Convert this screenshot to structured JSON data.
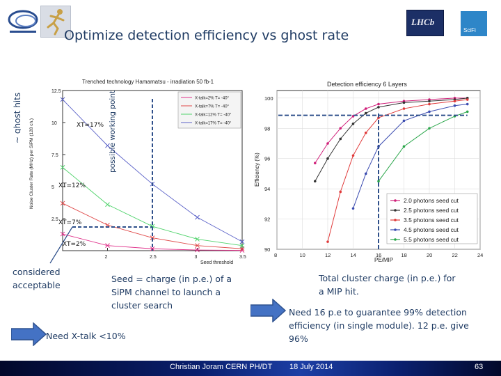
{
  "slide": {
    "title": "Optimize detection efficiency  vs  ghost rate",
    "ghost_label": "~ ghost hits",
    "page_number": "63"
  },
  "footer": {
    "author": "Christian Joram   CERN  PH/DT",
    "date": "18 July 2014"
  },
  "logos": {
    "lhcb_text": "LHCb",
    "scifi_text": "SciFi"
  },
  "left_chart": {
    "possible_working_point": "possible working point",
    "xt_labels": [
      "XT=17%",
      "XT=12%",
      "XT=7%",
      "XT=2%"
    ],
    "considered_acceptable": "considered acceptable",
    "chart_data": {
      "type": "line",
      "title": "Trenched technology Hamamatsu - irradiation 50 fb-1",
      "xlabel": "Seed threshold",
      "ylabel": "Noise Cluster Rate (MHz) per SiPM (128 ch.)",
      "x": [
        1.5,
        2,
        2.5,
        3,
        3.5
      ],
      "xlim": [
        1.5,
        3.5
      ],
      "ylim": [
        0,
        12.5
      ],
      "x_ticks": [
        "2",
        "2.5",
        "3",
        "3.5"
      ],
      "y_ticks": [
        "2.5",
        "5",
        "7.5",
        "10",
        "12.5"
      ],
      "legend_position": "top-right",
      "series": [
        {
          "name": "X-talk=2%  T= -40°",
          "color": "#e0308a",
          "values": [
            1.3,
            0.4,
            0.15,
            0.05,
            0.02
          ]
        },
        {
          "name": "X-talk=7%  T= -40°",
          "color": "#e04a4a",
          "values": [
            3.7,
            2.0,
            1.0,
            0.4,
            0.15
          ]
        },
        {
          "name": "X-talk=12% T= -40°",
          "color": "#4fd36b",
          "values": [
            6.5,
            3.6,
            1.9,
            0.9,
            0.4
          ]
        },
        {
          "name": "X-talk=17% T= -40°",
          "color": "#5b62c8",
          "values": [
            11.8,
            8.2,
            5.2,
            2.6,
            0.7
          ]
        }
      ]
    }
  },
  "right_chart": {
    "chart_data": {
      "type": "line",
      "title": "Detection efficiency 6 Layers",
      "xlabel": "PE/MIP",
      "ylabel": "Efficiency (%)",
      "xlim": [
        8,
        24
      ],
      "ylim": [
        90,
        100.5
      ],
      "x_ticks": [
        "8",
        "10",
        "12",
        "14",
        "16",
        "18",
        "20",
        "22",
        "24"
      ],
      "y_ticks": [
        "90",
        "92",
        "94",
        "96",
        "98",
        "100"
      ],
      "legend_position": "bottom-right",
      "series": [
        {
          "name": "2.0 photons seed cut",
          "color": "#d0207a",
          "x": [
            11,
            12,
            13,
            14,
            15,
            16,
            18,
            20,
            22,
            23
          ],
          "values": [
            95.7,
            97.0,
            98.0,
            98.8,
            99.3,
            99.6,
            99.8,
            99.9,
            100,
            100
          ]
        },
        {
          "name": "2.5 photons seed cut",
          "color": "#333333",
          "x": [
            11,
            12,
            13,
            14,
            15,
            16,
            18,
            20,
            22,
            23
          ],
          "values": [
            94.5,
            96.0,
            97.3,
            98.3,
            99.0,
            99.4,
            99.7,
            99.8,
            99.9,
            100
          ]
        },
        {
          "name": "3.5 photons seed cut",
          "color": "#e03a3a",
          "x": [
            12,
            13,
            14,
            15,
            16,
            18,
            20,
            22,
            23
          ],
          "values": [
            90.5,
            93.8,
            96.2,
            97.7,
            98.7,
            99.3,
            99.6,
            99.8,
            99.9
          ]
        },
        {
          "name": "4.5 photons seed cut",
          "color": "#3a4bb0",
          "x": [
            14,
            15,
            16,
            18,
            20,
            22,
            23
          ],
          "values": [
            92.7,
            95.0,
            96.8,
            98.5,
            99.1,
            99.5,
            99.6
          ]
        },
        {
          "name": "5.5 photons seed cut",
          "color": "#2aa64a",
          "x": [
            16,
            18,
            20,
            22,
            23
          ],
          "values": [
            94.5,
            96.8,
            98.0,
            98.8,
            99.1
          ]
        }
      ]
    }
  },
  "notes": {
    "seed_text": "Seed = charge (in p.e.) of a SiPM channel to launch a cluster search",
    "xtalk_text": "Need X-talk <10%",
    "total_charge_text": "Total cluster charge (in p.e.) for a MIP hit.",
    "need16_text": "Need 16 p.e to guarantee 99% detection efficiency (in single module). 12 p.e. give 96%"
  }
}
